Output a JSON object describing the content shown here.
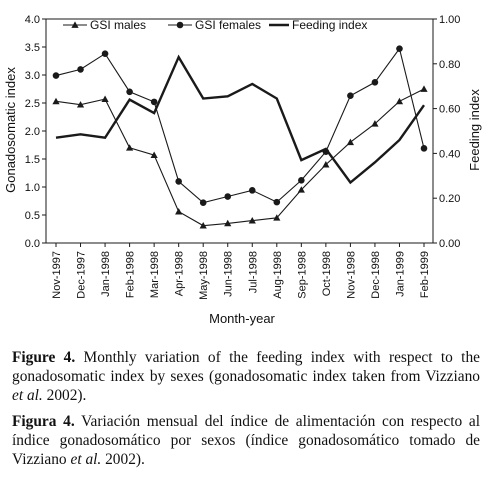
{
  "chart_data": {
    "type": "line",
    "categories": [
      "Nov-1997",
      "Dec-1997",
      "Jan-1998",
      "Feb-1998",
      "Mar-1998",
      "Apr-1998",
      "May-1998",
      "Jun-1998",
      "Jul-1998",
      "Aug-1998",
      "Sep-1998",
      "Oct-1998",
      "Nov-1998",
      "Dec-1998",
      "Jan-1999",
      "Feb-1999"
    ],
    "xlabel": "Month-year",
    "ylabel_left": "Gonadosomatic index",
    "ylabel_right": "Feeding index",
    "ylim_left": [
      0,
      4
    ],
    "ylim_right": [
      0,
      1
    ],
    "yticks_left": [
      "0.0",
      "0.5",
      "1.0",
      "1.5",
      "2.0",
      "2.5",
      "3.0",
      "3.5",
      "4.0"
    ],
    "yticks_right": [
      "0.00",
      "0.20",
      "0.40",
      "0.60",
      "0.80",
      "1.00"
    ],
    "legend_position": "top",
    "grid": false,
    "series": [
      {
        "name": "GSI males",
        "axis": "left",
        "marker": "triangle",
        "values": [
          2.53,
          2.47,
          2.57,
          1.7,
          1.57,
          0.56,
          0.31,
          0.35,
          0.4,
          0.45,
          0.95,
          1.4,
          1.8,
          2.13,
          2.53,
          2.75
        ]
      },
      {
        "name": "GSI females",
        "axis": "left",
        "marker": "circle",
        "values": [
          2.99,
          3.1,
          3.38,
          2.7,
          2.52,
          1.1,
          0.72,
          0.83,
          0.94,
          0.73,
          1.12,
          1.63,
          2.63,
          2.87,
          3.47,
          1.69
        ]
      },
      {
        "name": "Feeding index",
        "axis": "right",
        "marker": "none",
        "values": [
          0.47,
          0.485,
          0.47,
          0.64,
          0.58,
          0.83,
          0.645,
          0.655,
          0.71,
          0.645,
          0.37,
          0.42,
          0.27,
          0.36,
          0.46,
          0.615
        ]
      }
    ]
  },
  "caption": {
    "en_label": "Figure 4.",
    "en_text": " Monthly variation of the feeding index with respect to the gonadosomatic index by sexes (gonadosomatic index taken from Vizziano ",
    "en_italic": "et al.",
    "en_tail": " 2002).",
    "es_label": "Figura 4.",
    "es_text": " Variación mensual del índice de alimentación con respecto al índice gonadosomático por sexos (índice gonadosomático tomado de Vizziano ",
    "es_italic": "et al.",
    "es_tail": " 2002)."
  },
  "colors": {
    "line": "#1a1a1a",
    "background": "#ffffff"
  }
}
